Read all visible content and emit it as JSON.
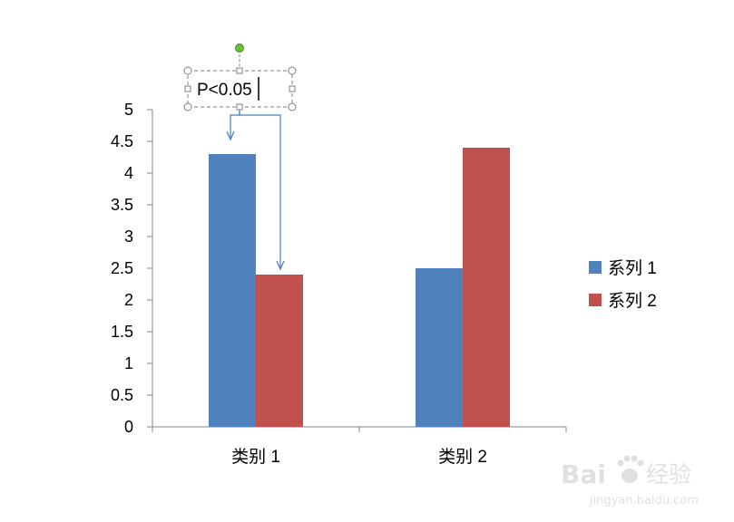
{
  "chart_data": {
    "type": "bar",
    "categories": [
      "类别 1",
      "类别 2"
    ],
    "series": [
      {
        "name": "系列 1",
        "values": [
          4.3,
          2.5
        ],
        "color": "#4F81BD"
      },
      {
        "name": "系列 2",
        "values": [
          2.4,
          4.4
        ],
        "color": "#C0504D"
      }
    ],
    "ylim": [
      0,
      5
    ],
    "y_ticks": [
      "0",
      "0.5",
      "1",
      "1.5",
      "2",
      "2.5",
      "3",
      "3.5",
      "4",
      "4.5",
      "5"
    ],
    "title": "",
    "xlabel": "",
    "ylabel": "",
    "grid": false,
    "legend_position": "right",
    "axis_color": "#868686"
  },
  "annotation": {
    "text": "P<0.05",
    "connector_color": "#4A7EBB",
    "selection_color": "#7F7F7F",
    "rotate_handle_color": "#6CBE35"
  },
  "watermark": {
    "brand": "Bai",
    "brand_suffix": "经验",
    "url": "jingyan.baidu.com",
    "icon": "paw-icon"
  }
}
